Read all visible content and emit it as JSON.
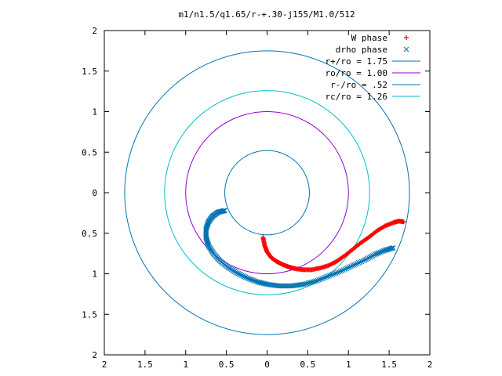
{
  "chart_data": {
    "type": "scatter",
    "title": "m1/n1.5/q1.65/r-+.30-j155/M1.0/512",
    "xlim": [
      -2,
      2
    ],
    "ylim": [
      -2,
      2
    ],
    "x_ticks": [
      {
        "value": -2,
        "label": "2"
      },
      {
        "value": -1.5,
        "label": "1.5"
      },
      {
        "value": -1,
        "label": "1"
      },
      {
        "value": -0.5,
        "label": "0.5"
      },
      {
        "value": 0,
        "label": "0"
      },
      {
        "value": 0.5,
        "label": "0.5"
      },
      {
        "value": 1,
        "label": "1"
      },
      {
        "value": 1.5,
        "label": "1.5"
      },
      {
        "value": 2,
        "label": "2"
      }
    ],
    "y_ticks": [
      {
        "value": 2,
        "label": "2"
      },
      {
        "value": 1.5,
        "label": "1.5"
      },
      {
        "value": 1,
        "label": "1"
      },
      {
        "value": 0.5,
        "label": "0.5"
      },
      {
        "value": 0,
        "label": "0"
      },
      {
        "value": -0.5,
        "label": "0.5"
      },
      {
        "value": -1,
        "label": "1"
      },
      {
        "value": -1.5,
        "label": "1.5"
      },
      {
        "value": -2,
        "label": "2"
      }
    ],
    "legend_position": "top-right",
    "grid": false,
    "circles": [
      {
        "name": "r+/ro = 1.75",
        "radius": 1.75,
        "color": "#0072b2"
      },
      {
        "name": "ro/ro = 1.00",
        "radius": 1.0,
        "color": "#9400d3"
      },
      {
        "name": "r-/ro = .52",
        "radius": 0.52,
        "color": "#0072b2"
      },
      {
        "name": "rc/ro = 1.26",
        "radius": 1.26,
        "color": "#00c0c8"
      }
    ],
    "series": [
      {
        "name": "W phase",
        "marker": "+",
        "color": "#ff0000",
        "points": [
          [
            -0.05,
            -0.55
          ],
          [
            -0.03,
            -0.65
          ],
          [
            0.0,
            -0.73
          ],
          [
            0.05,
            -0.8
          ],
          [
            0.12,
            -0.85
          ],
          [
            0.2,
            -0.89
          ],
          [
            0.28,
            -0.92
          ],
          [
            0.36,
            -0.94
          ],
          [
            0.45,
            -0.95
          ],
          [
            0.55,
            -0.95
          ],
          [
            0.65,
            -0.93
          ],
          [
            0.75,
            -0.9
          ],
          [
            0.85,
            -0.85
          ],
          [
            0.95,
            -0.78
          ],
          [
            1.05,
            -0.7
          ],
          [
            1.15,
            -0.62
          ],
          [
            1.25,
            -0.55
          ],
          [
            1.35,
            -0.47
          ],
          [
            1.45,
            -0.41
          ],
          [
            1.55,
            -0.37
          ],
          [
            1.62,
            -0.35
          ],
          [
            1.68,
            -0.36
          ]
        ]
      },
      {
        "name": "drho phase",
        "marker": "x",
        "color": "#0072b2",
        "points": [
          [
            -0.52,
            -0.22
          ],
          [
            -0.6,
            -0.24
          ],
          [
            -0.67,
            -0.29
          ],
          [
            -0.72,
            -0.36
          ],
          [
            -0.75,
            -0.45
          ],
          [
            -0.75,
            -0.55
          ],
          [
            -0.72,
            -0.65
          ],
          [
            -0.66,
            -0.75
          ],
          [
            -0.58,
            -0.84
          ],
          [
            -0.48,
            -0.92
          ],
          [
            -0.37,
            -0.99
          ],
          [
            -0.25,
            -1.05
          ],
          [
            -0.12,
            -1.1
          ],
          [
            0.0,
            -1.13
          ],
          [
            0.15,
            -1.15
          ],
          [
            0.3,
            -1.15
          ],
          [
            0.45,
            -1.13
          ],
          [
            0.6,
            -1.09
          ],
          [
            0.75,
            -1.03
          ],
          [
            0.9,
            -0.97
          ],
          [
            1.05,
            -0.9
          ],
          [
            1.2,
            -0.83
          ],
          [
            1.33,
            -0.76
          ],
          [
            1.45,
            -0.71
          ],
          [
            1.55,
            -0.68
          ]
        ]
      }
    ]
  }
}
